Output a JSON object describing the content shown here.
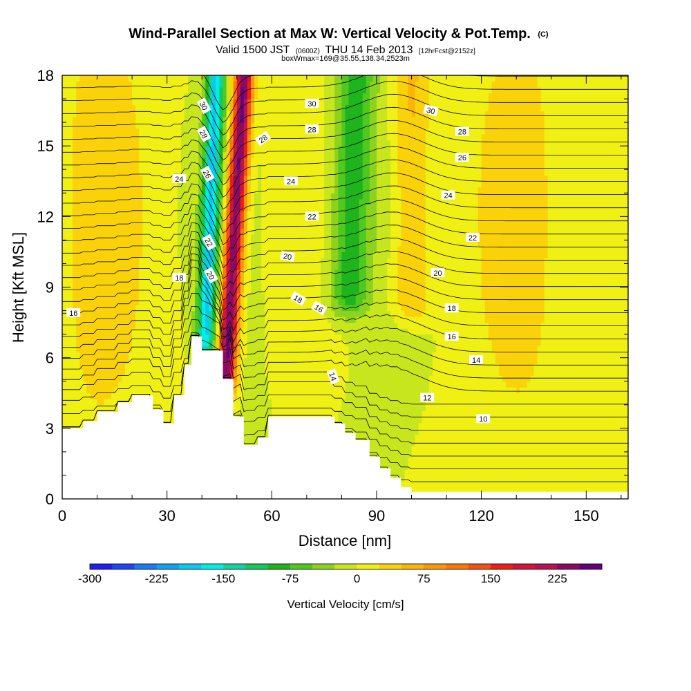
{
  "title": {
    "main": "Wind-Parallel Section at Max W: Vertical Velocity & Pot.Temp.",
    "unit_tag": "(C)",
    "valid_prefix": "Valid 1500 JST",
    "valid_utc": "(0600Z)",
    "valid_date": "THU 14 Feb 2013",
    "forecast_tag": "[12hrFcst@2152z]",
    "box_info": "boxWmax=169@35.55,138.34,2523m"
  },
  "chart_data": {
    "type": "heatmap",
    "xlabel": "Distance [nm]",
    "ylabel": "Height [Kft MSL]",
    "xlim": [
      0,
      162
    ],
    "ylim": [
      0,
      18
    ],
    "x_ticks": [
      0,
      30,
      60,
      90,
      120,
      150
    ],
    "y_ticks": [
      0,
      3,
      6,
      9,
      12,
      15,
      18
    ],
    "x_tick_labels": [
      "0",
      "30",
      "60",
      "90",
      "120",
      "150"
    ],
    "y_tick_labels": [
      "0",
      "3",
      "6",
      "9",
      "12",
      "15",
      "18"
    ],
    "colorbar": {
      "title": "Vertical Velocity [cm/s]",
      "levels": [
        -300,
        -275,
        -250,
        -225,
        -200,
        -175,
        -150,
        -125,
        -100,
        -75,
        -50,
        -25,
        0,
        25,
        50,
        75,
        100,
        125,
        150,
        175,
        200,
        225,
        250
      ],
      "tick_values": [
        -300,
        -225,
        -150,
        -75,
        0,
        75,
        150,
        225
      ],
      "tick_labels": [
        "-300",
        "-225",
        "-150",
        "-75",
        "0",
        "75",
        "150",
        "225"
      ],
      "colors": [
        "#1e1ef5",
        "#1e46f5",
        "#1e78f5",
        "#14a0f0",
        "#0ac8f0",
        "#00eee6",
        "#14d2a0",
        "#14c85a",
        "#1eb41e",
        "#50c81e",
        "#8cd21e",
        "#c8e61e",
        "#f0f014",
        "#fad20a",
        "#fab40a",
        "#fa960a",
        "#fa780a",
        "#f55014",
        "#ee1e14",
        "#d2143c",
        "#b41450",
        "#8c0a64",
        "#64007d"
      ]
    },
    "features": [
      {
        "name": "downdraft",
        "x": 41,
        "x_at_top": 44,
        "y_top": 18,
        "y_bottom": 6.8,
        "peak_w": -175
      },
      {
        "name": "updraft",
        "x": 47,
        "x_at_top": 52,
        "y_top": 18,
        "y_bottom": 5.4,
        "peak_w": 260
      },
      {
        "name": "sink-band",
        "x": 82,
        "x_at_top": 84,
        "y_top": 18,
        "y_bottom": 8.7,
        "peak_w": -90
      },
      {
        "name": "lift-band",
        "x": 100,
        "x_at_top": 100,
        "y_top": 18,
        "y_bottom": 8.5,
        "peak_w": 60
      }
    ],
    "terrain": {
      "x": [
        0,
        6,
        6,
        10,
        10,
        16,
        16,
        20,
        20,
        26,
        26,
        29,
        29,
        32,
        32,
        35,
        35,
        37,
        37,
        40,
        40,
        46,
        46,
        49,
        49,
        52,
        52,
        56,
        56,
        59,
        59,
        62,
        62,
        68,
        68,
        78,
        78,
        81,
        81,
        84,
        84,
        88,
        88,
        91,
        91,
        94,
        94,
        97,
        97,
        100,
        100,
        162
      ],
      "y": [
        3.0,
        3.0,
        3.3,
        3.3,
        3.7,
        3.7,
        4.1,
        4.1,
        4.4,
        4.4,
        3.8,
        3.8,
        3.2,
        3.2,
        4.4,
        4.4,
        5.7,
        5.7,
        6.9,
        6.9,
        6.3,
        6.3,
        5.1,
        5.1,
        3.5,
        3.5,
        2.3,
        2.3,
        2.6,
        2.6,
        3.5,
        3.5,
        3.5,
        3.5,
        3.5,
        3.5,
        3.2,
        3.2,
        2.8,
        2.8,
        2.5,
        2.5,
        1.8,
        1.8,
        1.3,
        1.3,
        0.9,
        0.9,
        0.5,
        0.5,
        0.3,
        0.3
      ]
    },
    "potential_temperature_contours": {
      "units": "C",
      "labeled_values": [
        "10",
        "12",
        "14",
        "16",
        "18",
        "20",
        "22",
        "24",
        "26",
        "28",
        "30"
      ],
      "labels": [
        {
          "text": "30",
          "x": 40.5,
          "y": 16.7,
          "angle": 62
        },
        {
          "text": "28",
          "x": 40.5,
          "y": 15.5,
          "angle": 62
        },
        {
          "text": "26",
          "x": 41.5,
          "y": 13.8,
          "angle": 62
        },
        {
          "text": "24",
          "x": 33.5,
          "y": 13.6,
          "angle": 0
        },
        {
          "text": "22",
          "x": 42.0,
          "y": 10.9,
          "angle": 62
        },
        {
          "text": "20",
          "x": 42.5,
          "y": 9.5,
          "angle": 62
        },
        {
          "text": "18",
          "x": 33.5,
          "y": 9.4,
          "angle": 0
        },
        {
          "text": "16",
          "x": 3.2,
          "y": 7.9,
          "angle": 0
        },
        {
          "text": "28",
          "x": 57.5,
          "y": 15.3,
          "angle": -35
        },
        {
          "text": "24",
          "x": 65.5,
          "y": 13.5,
          "angle": 0
        },
        {
          "text": "22",
          "x": 71.5,
          "y": 12.0,
          "angle": 0
        },
        {
          "text": "20",
          "x": 64.5,
          "y": 10.3,
          "angle": 10
        },
        {
          "text": "18",
          "x": 67.5,
          "y": 8.5,
          "angle": 30
        },
        {
          "text": "16",
          "x": 73.5,
          "y": 8.1,
          "angle": 30
        },
        {
          "text": "30",
          "x": 71.5,
          "y": 16.8,
          "angle": 0
        },
        {
          "text": "28",
          "x": 71.5,
          "y": 15.7,
          "angle": 0
        },
        {
          "text": "30",
          "x": 105.5,
          "y": 16.5,
          "angle": 15
        },
        {
          "text": "28",
          "x": 114.5,
          "y": 15.6,
          "angle": 0
        },
        {
          "text": "26",
          "x": 114.5,
          "y": 14.5,
          "angle": 0
        },
        {
          "text": "24",
          "x": 110.5,
          "y": 12.9,
          "angle": 0
        },
        {
          "text": "22",
          "x": 117.5,
          "y": 11.1,
          "angle": 0
        },
        {
          "text": "20",
          "x": 107.5,
          "y": 9.6,
          "angle": 0
        },
        {
          "text": "18",
          "x": 111.5,
          "y": 8.1,
          "angle": 0
        },
        {
          "text": "16",
          "x": 111.5,
          "y": 6.9,
          "angle": 0
        },
        {
          "text": "14",
          "x": 118.5,
          "y": 5.9,
          "angle": 0
        },
        {
          "text": "14",
          "x": 77.5,
          "y": 5.2,
          "angle": 70
        },
        {
          "text": "12",
          "x": 104.5,
          "y": 4.3,
          "angle": 0
        },
        {
          "text": "10",
          "x": 120.5,
          "y": 3.4,
          "angle": 0
        }
      ]
    }
  }
}
